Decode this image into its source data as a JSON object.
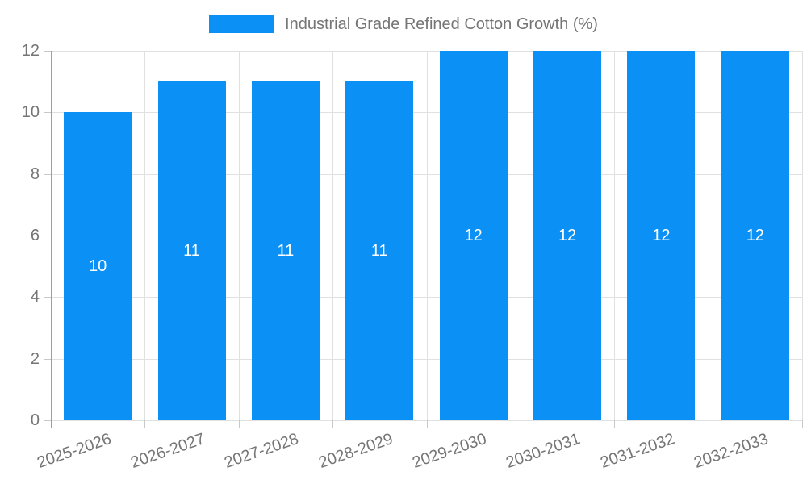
{
  "chart_data": {
    "type": "bar",
    "title": "Industrial Grade Refined Cotton Growth (%)",
    "series_name": "Industrial Grade Refined Cotton Growth (%)",
    "categories": [
      "2025-2026",
      "2026-2027",
      "2027-2028",
      "2028-2029",
      "2029-2030",
      "2030-2031",
      "2031-2032",
      "2032-2033"
    ],
    "values": [
      10,
      11,
      11,
      11,
      12,
      12,
      12,
      12
    ],
    "data_labels": [
      "10",
      "11",
      "11",
      "11",
      "12",
      "12",
      "12",
      "12"
    ],
    "xlabel": "",
    "ylabel": "",
    "ylim": [
      0,
      12
    ],
    "yticks": [
      0,
      2,
      4,
      6,
      8,
      10,
      12
    ],
    "grid": true,
    "legend_position": "top-center",
    "data_label_position": "inside-center",
    "colors": {
      "bar": "#0b90f5",
      "data_label": "#ffffff",
      "axis_text": "#757575",
      "gridline": "#e0e0e0",
      "axis_line": "#9e9e9e",
      "tick_mark": "#c8c8c8",
      "background": "#ffffff"
    }
  }
}
